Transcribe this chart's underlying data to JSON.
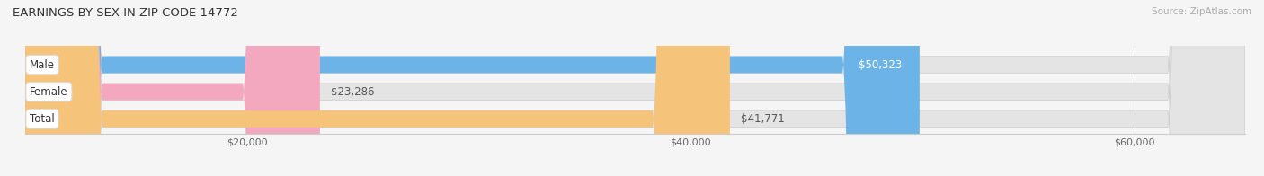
{
  "title": "EARNINGS BY SEX IN ZIP CODE 14772",
  "source": "Source: ZipAtlas.com",
  "categories": [
    "Male",
    "Female",
    "Total"
  ],
  "values": [
    50323,
    23286,
    41771
  ],
  "bar_colors": [
    "#6cb3e8",
    "#f4a8c0",
    "#f5c47a"
  ],
  "value_labels": [
    "$50,323",
    "$23,286",
    "$41,771"
  ],
  "value_label_inside": [
    true,
    false,
    false
  ],
  "value_label_colors": [
    "#ffffff",
    "#555555",
    "#555555"
  ],
  "xmin": 10000,
  "xlim": [
    10000,
    65000
  ],
  "xticks": [
    20000,
    40000,
    60000
  ],
  "xticklabels": [
    "$20,000",
    "$40,000",
    "$60,000"
  ],
  "bg_color": "#f5f5f5",
  "bar_track_color": "#e4e4e4",
  "title_fontsize": 9.5,
  "label_fontsize": 8.5,
  "value_fontsize": 8.5,
  "source_fontsize": 7.5,
  "figwidth": 14.06,
  "figheight": 1.96,
  "dpi": 100
}
